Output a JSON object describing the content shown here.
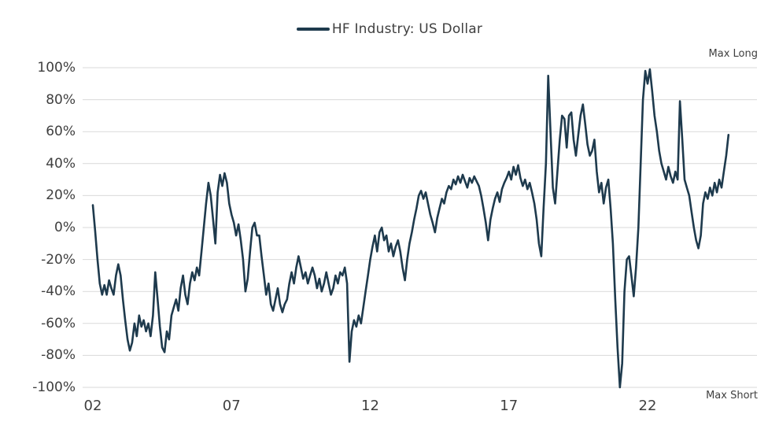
{
  "chart_data": {
    "type": "line",
    "title": "",
    "legend_label": "HF Industry: US Dollar",
    "line_color": "#1e3a4d",
    "grid_color": "#d9d9d9",
    "text_color": "#3f3f3f",
    "ylim": [
      -100,
      100
    ],
    "yticks": [
      "100%",
      "80%",
      "60%",
      "40%",
      "20%",
      "0%",
      "-20%",
      "-40%",
      "-60%",
      "-80%",
      "-100%"
    ],
    "xticks": [
      {
        "label": "02",
        "year": 2002
      },
      {
        "label": "07",
        "year": 2007
      },
      {
        "label": "12",
        "year": 2012
      },
      {
        "label": "17",
        "year": 2017
      },
      {
        "label": "22",
        "year": 2022
      }
    ],
    "annotations": {
      "top_right": "Max Long",
      "bottom_right": "Max Short"
    },
    "series": [
      {
        "name": "HF Industry: US Dollar",
        "start_year": 2002,
        "points_per_year": 12,
        "values": [
          14,
          -2,
          -20,
          -35,
          -42,
          -36,
          -42,
          -33,
          -38,
          -42,
          -30,
          -23,
          -30,
          -45,
          -58,
          -70,
          -77,
          -72,
          -60,
          -68,
          -55,
          -62,
          -58,
          -65,
          -60,
          -68,
          -55,
          -28,
          -45,
          -62,
          -75,
          -78,
          -65,
          -70,
          -55,
          -50,
          -45,
          -52,
          -38,
          -30,
          -42,
          -48,
          -35,
          -28,
          -33,
          -25,
          -30,
          -15,
          0,
          15,
          28,
          20,
          5,
          -10,
          22,
          33,
          26,
          34,
          28,
          15,
          8,
          3,
          -5,
          2,
          -8,
          -20,
          -40,
          -32,
          -15,
          0,
          3,
          -5,
          -5,
          -18,
          -30,
          -42,
          -35,
          -48,
          -52,
          -45,
          -38,
          -48,
          -53,
          -48,
          -45,
          -35,
          -28,
          -35,
          -25,
          -18,
          -25,
          -32,
          -28,
          -35,
          -30,
          -25,
          -30,
          -38,
          -32,
          -40,
          -35,
          -28,
          -35,
          -42,
          -38,
          -30,
          -35,
          -28,
          -30,
          -25,
          -35,
          -84,
          -65,
          -58,
          -62,
          -55,
          -60,
          -50,
          -40,
          -30,
          -20,
          -12,
          -5,
          -15,
          -3,
          0,
          -8,
          -5,
          -15,
          -10,
          -18,
          -12,
          -8,
          -15,
          -25,
          -33,
          -20,
          -10,
          -3,
          5,
          12,
          20,
          23,
          18,
          22,
          15,
          8,
          3,
          -3,
          6,
          12,
          18,
          15,
          22,
          26,
          24,
          30,
          27,
          32,
          28,
          33,
          29,
          25,
          31,
          28,
          32,
          29,
          26,
          20,
          12,
          3,
          -8,
          5,
          12,
          18,
          22,
          16,
          24,
          28,
          31,
          35,
          30,
          38,
          33,
          39,
          31,
          26,
          30,
          24,
          28,
          22,
          15,
          5,
          -10,
          -18,
          12,
          40,
          95,
          60,
          25,
          15,
          35,
          55,
          70,
          68,
          50,
          70,
          72,
          55,
          45,
          58,
          70,
          77,
          65,
          52,
          45,
          48,
          55,
          35,
          22,
          28,
          15,
          25,
          30,
          12,
          -10,
          -45,
          -75,
          -100,
          -85,
          -40,
          -20,
          -18,
          -30,
          -43,
          -25,
          0,
          40,
          80,
          98,
          90,
          99,
          85,
          70,
          60,
          48,
          40,
          35,
          30,
          38,
          32,
          28,
          35,
          30,
          79,
          55,
          30,
          25,
          20,
          10,
          0,
          -8,
          -13,
          -5,
          15,
          22,
          18,
          25,
          20,
          28,
          22,
          30,
          25,
          35,
          45,
          58
        ]
      }
    ]
  }
}
